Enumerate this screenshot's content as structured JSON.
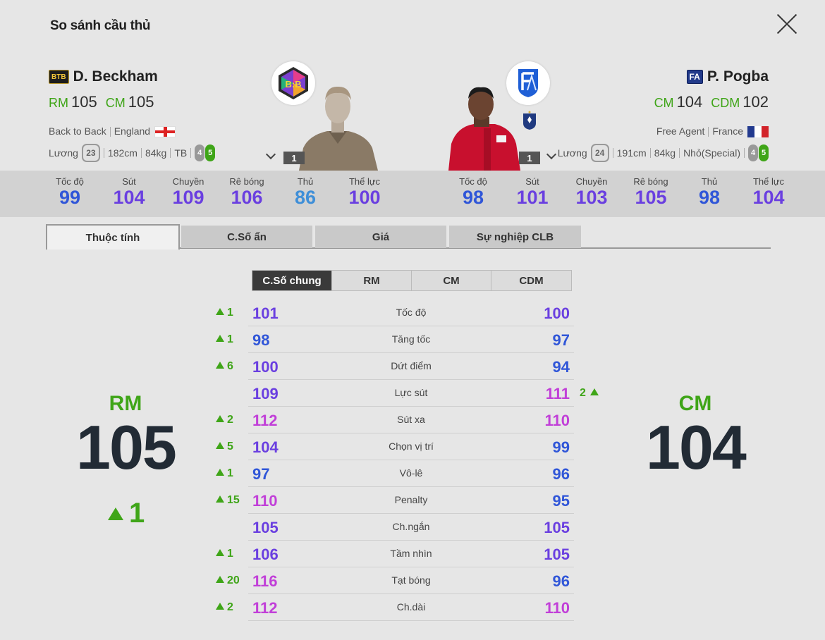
{
  "title": "So sánh cầu thủ",
  "colors": {
    "green": "#3fa518",
    "blue": "#3056d8",
    "violet": "#6a3fe0",
    "magenta": "#c13fd8",
    "cyan": "#3f8fd8",
    "dark": "#222b35"
  },
  "left": {
    "badge": "BTB",
    "name": "D. Beckham",
    "pos1": "RM",
    "ovr1": "105",
    "pos2": "CM",
    "ovr2": "105",
    "season": "Back to Back",
    "nation": "England",
    "wage_label": "Lương",
    "wage": "23",
    "height": "182cm",
    "weight": "84kg",
    "body": "TB",
    "weak_foot": "4",
    "strong_foot": "5",
    "level": "1",
    "logo_text": "B:B"
  },
  "right": {
    "badge": "FA",
    "name": "P. Pogba",
    "pos1": "CM",
    "ovr1": "104",
    "pos2": "CDM",
    "ovr2": "102",
    "season": "Free Agent",
    "nation": "France",
    "wage_label": "Lương",
    "wage": "24",
    "height": "191cm",
    "weight": "84kg",
    "body": "Nhỏ(Special)",
    "weak_foot": "4",
    "strong_foot": "5",
    "level": "1",
    "logo_text": "FA"
  },
  "strip_left": [
    {
      "label": "Tốc độ",
      "value": "99",
      "color": "#3056d8"
    },
    {
      "label": "Sút",
      "value": "104",
      "color": "#6a3fe0"
    },
    {
      "label": "Chuyền",
      "value": "109",
      "color": "#6a3fe0"
    },
    {
      "label": "Rê bóng",
      "value": "106",
      "color": "#6a3fe0"
    },
    {
      "label": "Thủ",
      "value": "86",
      "color": "#3f8fd8"
    },
    {
      "label": "Thể lực",
      "value": "100",
      "color": "#6a3fe0"
    }
  ],
  "strip_right": [
    {
      "label": "Tốc độ",
      "value": "98",
      "color": "#3056d8"
    },
    {
      "label": "Sút",
      "value": "101",
      "color": "#6a3fe0"
    },
    {
      "label": "Chuyền",
      "value": "103",
      "color": "#6a3fe0"
    },
    {
      "label": "Rê bóng",
      "value": "105",
      "color": "#6a3fe0"
    },
    {
      "label": "Thủ",
      "value": "98",
      "color": "#3056d8"
    },
    {
      "label": "Thể lực",
      "value": "104",
      "color": "#6a3fe0"
    }
  ],
  "tabs": [
    "Thuộc tính",
    "C.Số ẩn",
    "Giá",
    "Sự nghiệp CLB"
  ],
  "subtabs": [
    "C.Số chung",
    "RM",
    "CM",
    "CDM"
  ],
  "big_left": {
    "pos": "RM",
    "ovr": "105",
    "diff": "1"
  },
  "big_right": {
    "pos": "CM",
    "ovr": "104"
  },
  "rows": [
    {
      "name": "Tốc độ",
      "left": "101",
      "right": "100",
      "lcolor": "#6a3fe0",
      "rcolor": "#6a3fe0",
      "ldiff": "1",
      "rdiff": ""
    },
    {
      "name": "Tăng tốc",
      "left": "98",
      "right": "97",
      "lcolor": "#3056d8",
      "rcolor": "#3056d8",
      "ldiff": "1",
      "rdiff": ""
    },
    {
      "name": "Dứt điểm",
      "left": "100",
      "right": "94",
      "lcolor": "#6a3fe0",
      "rcolor": "#3056d8",
      "ldiff": "6",
      "rdiff": ""
    },
    {
      "name": "Lực sút",
      "left": "109",
      "right": "111",
      "lcolor": "#6a3fe0",
      "rcolor": "#c13fd8",
      "ldiff": "",
      "rdiff": "2"
    },
    {
      "name": "Sút xa",
      "left": "112",
      "right": "110",
      "lcolor": "#c13fd8",
      "rcolor": "#c13fd8",
      "ldiff": "2",
      "rdiff": ""
    },
    {
      "name": "Chọn vị trí",
      "left": "104",
      "right": "99",
      "lcolor": "#6a3fe0",
      "rcolor": "#3056d8",
      "ldiff": "5",
      "rdiff": ""
    },
    {
      "name": "Vô-lê",
      "left": "97",
      "right": "96",
      "lcolor": "#3056d8",
      "rcolor": "#3056d8",
      "ldiff": "1",
      "rdiff": ""
    },
    {
      "name": "Penalty",
      "left": "110",
      "right": "95",
      "lcolor": "#c13fd8",
      "rcolor": "#3056d8",
      "ldiff": "15",
      "rdiff": ""
    },
    {
      "name": "Ch.ngắn",
      "left": "105",
      "right": "105",
      "lcolor": "#6a3fe0",
      "rcolor": "#6a3fe0",
      "ldiff": "",
      "rdiff": ""
    },
    {
      "name": "Tầm nhìn",
      "left": "106",
      "right": "105",
      "lcolor": "#6a3fe0",
      "rcolor": "#6a3fe0",
      "ldiff": "1",
      "rdiff": ""
    },
    {
      "name": "Tạt bóng",
      "left": "116",
      "right": "96",
      "lcolor": "#c13fd8",
      "rcolor": "#3056d8",
      "ldiff": "20",
      "rdiff": ""
    },
    {
      "name": "Ch.dài",
      "left": "112",
      "right": "110",
      "lcolor": "#c13fd8",
      "rcolor": "#c13fd8",
      "ldiff": "2",
      "rdiff": ""
    }
  ]
}
